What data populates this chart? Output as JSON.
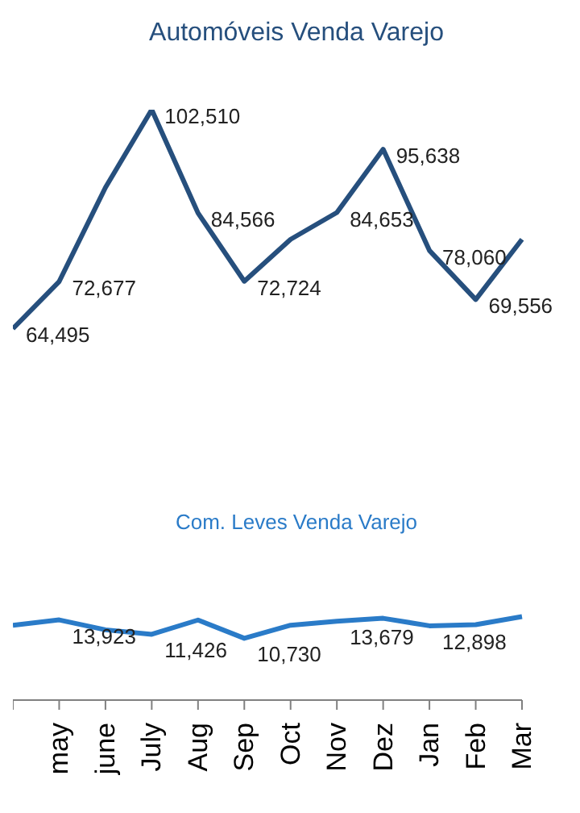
{
  "chart_data": {
    "type": "line",
    "categories": [
      null,
      "may",
      "june",
      "July",
      "Aug",
      "Sep",
      "Oct",
      "Nov",
      "Dez",
      "Jan",
      "Feb",
      "Mar"
    ],
    "series": [
      {
        "name": "Automóveis Venda Varejo",
        "color": "#264f7d",
        "values": [
          64495,
          72677,
          89000,
          102510,
          84566,
          72724,
          80000,
          84653,
          95638,
          78060,
          69556,
          80000
        ],
        "value_labels": [
          "64,495",
          "72,677",
          null,
          "102,510",
          "84,566",
          "72,724",
          null,
          "84,653",
          "95,638",
          "78,060",
          "69,556",
          null
        ]
      },
      {
        "name": "Com. Leves Venda Varejo",
        "color": "#2a7bc8",
        "values": [
          13000,
          13923,
          12200,
          11426,
          13900,
          10730,
          13000,
          13679,
          14200,
          12898,
          13100,
          14500
        ],
        "value_labels": [
          null,
          "13,923",
          null,
          "11,426",
          null,
          "10,730",
          null,
          "13,679",
          null,
          "12,898",
          null,
          null
        ]
      }
    ],
    "tick_labels": "x",
    "marker": "none",
    "line_style": "solid"
  }
}
